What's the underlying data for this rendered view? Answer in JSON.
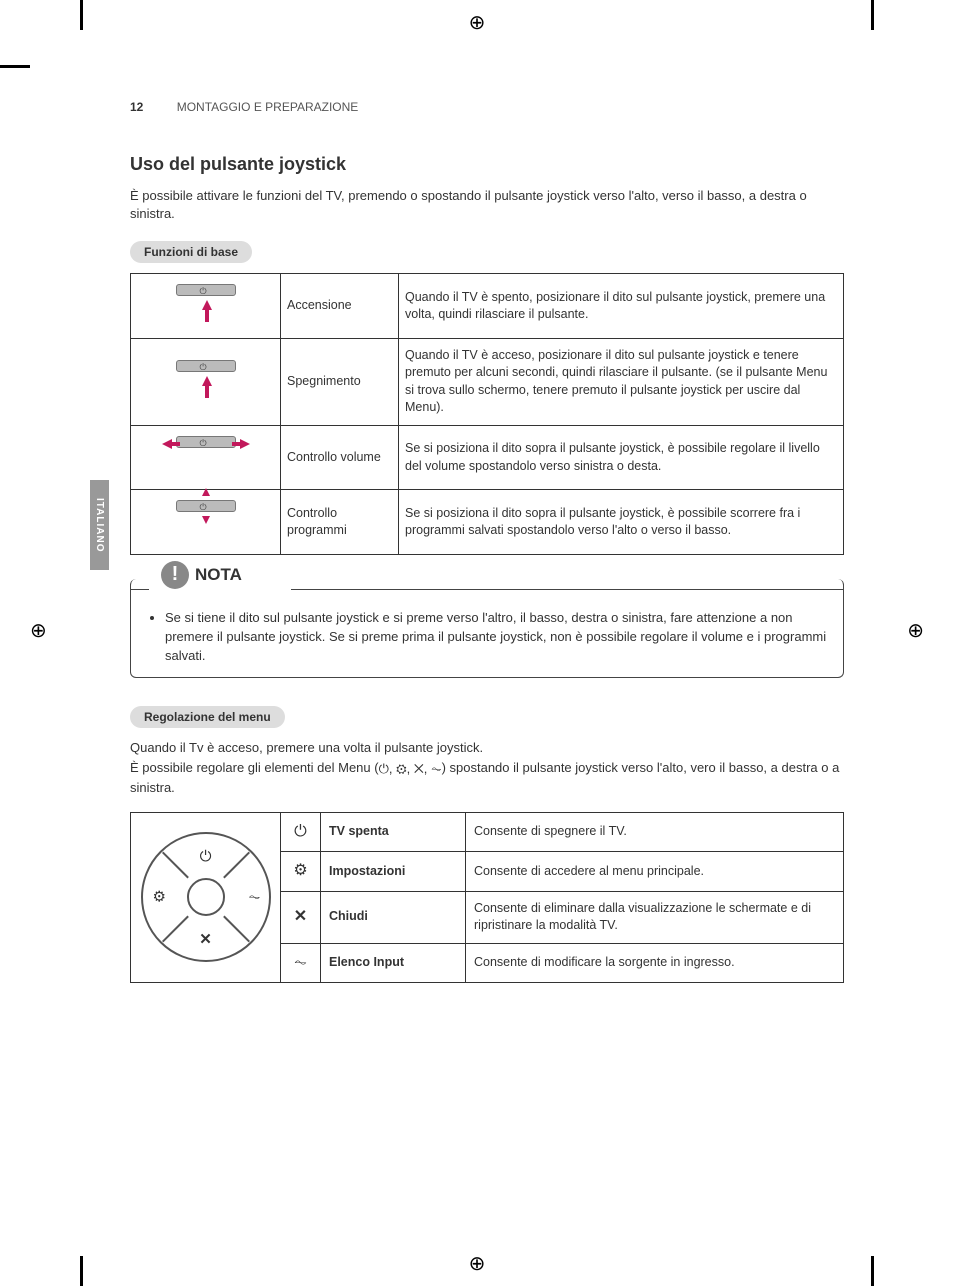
{
  "page_number": "12",
  "header_section": "MONTAGGIO E PREPARAZIONE",
  "side_tab": "ITALIANO",
  "section_title": "Uso del pulsante joystick",
  "intro": "È possibile attivare le funzioni del TV, premendo o spostando il pulsante joystick verso l'alto, verso il basso, a destra o sinistra.",
  "basic_pill": "Funzioni di base",
  "basic_table": {
    "rows": [
      {
        "label": "Accensione",
        "desc": "Quando il TV è spento, posizionare il dito sul pulsante joystick, premere una volta, quindi rilasciare il pulsante."
      },
      {
        "label": "Spegnimento",
        "desc": "Quando il TV è acceso, posizionare il dito sul pulsante joystick e tenere premuto per alcuni secondi, quindi rilasciare il pulsante.\n(se il pulsante Menu si trova sullo schermo, tenere premuto il pulsante joystick per uscire dal Menu)."
      },
      {
        "label": "Controllo volume",
        "desc": "Se si posiziona il dito sopra il pulsante joystick, è possibile regolare il livello del volume spostandolo verso sinistra o desta."
      },
      {
        "label": "Controllo programmi",
        "desc": "Se si posiziona il dito sopra il pulsante joystick, è possibile scorrere fra i programmi salvati spostandolo verso l'alto o verso il basso."
      }
    ]
  },
  "note": {
    "title": "NOTA",
    "text": "Se si tiene il dito sul pulsante joystick e si preme verso l'altro, il basso, destra o sinistra, fare attenzione a non premere il pulsante joystick. Se si preme prima il pulsante joystick, non è possibile regolare il volume e i programmi salvati."
  },
  "menu_pill": "Regolazione del menu",
  "menu_intro_line1": "Quando il Tv è acceso, premere una volta il pulsante joystick.",
  "menu_intro_line2a": "È possibile regolare gli elementi del Menu (",
  "menu_intro_line2b": ") spostando il pulsante joystick verso l'alto, vero il basso, a destra o a sinistra.",
  "menu_inline_icons": "⏻, ⚙, ✕, ⏦",
  "menu_table": {
    "rows": [
      {
        "icon": "⏻",
        "label": "TV spenta",
        "desc": "Consente di spegnere il TV."
      },
      {
        "icon": "⚙",
        "label": "Impostazioni",
        "desc": "Consente di accedere al menu principale."
      },
      {
        "icon": "✕",
        "label": "Chiudi",
        "desc": "Consente di eliminare dalla visualizzazione le schermate e di ripristinare la modalità TV."
      },
      {
        "icon": "⏦",
        "label": "Elenco Input",
        "desc": "Consente di modificare la sorgente in ingresso."
      }
    ]
  },
  "colors": {
    "arrow": "#c2185b",
    "border": "#333333",
    "pill_bg": "#dddddd",
    "side_tab_bg": "#999999"
  }
}
